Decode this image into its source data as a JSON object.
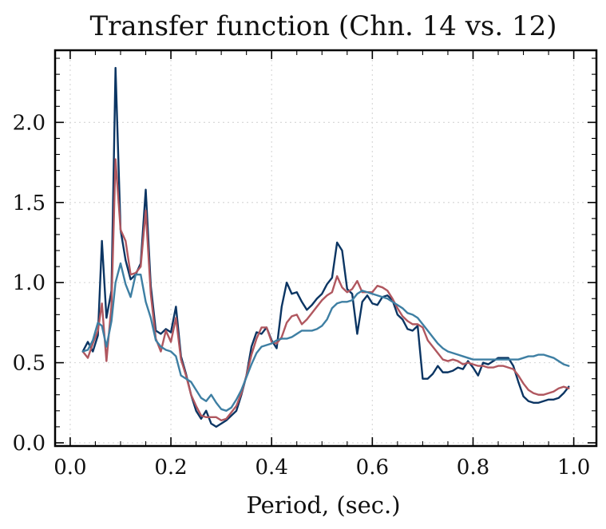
{
  "chart_data": {
    "type": "line",
    "title": "Transfer function (Chn. 14 vs. 12)",
    "xlabel": "Period, (sec.)",
    "ylabel": "",
    "xlim": [
      -0.03,
      1.045
    ],
    "ylim": [
      -0.02,
      2.45
    ],
    "xticks": [
      0.0,
      0.2,
      0.4,
      0.6,
      0.8,
      1.0
    ],
    "xtick_labels": [
      "0.0",
      "0.2",
      "0.4",
      "0.6",
      "0.8",
      "1.0"
    ],
    "yticks": [
      0.0,
      0.5,
      1.0,
      1.5,
      2.0
    ],
    "ytick_labels": [
      "0.0",
      "0.5",
      "1.0",
      "1.5",
      "2.0"
    ],
    "grid": true,
    "series": [
      {
        "color": "#0b3563",
        "points": [
          [
            0.025,
            0.57
          ],
          [
            0.035,
            0.63
          ],
          [
            0.045,
            0.57
          ],
          [
            0.055,
            0.67
          ],
          [
            0.063,
            1.26
          ],
          [
            0.072,
            0.78
          ],
          [
            0.082,
            0.95
          ],
          [
            0.09,
            2.34
          ],
          [
            0.1,
            1.33
          ],
          [
            0.11,
            1.14
          ],
          [
            0.12,
            1.02
          ],
          [
            0.13,
            1.05
          ],
          [
            0.14,
            1.12
          ],
          [
            0.15,
            1.58
          ],
          [
            0.16,
            0.98
          ],
          [
            0.17,
            0.7
          ],
          [
            0.18,
            0.68
          ],
          [
            0.19,
            0.71
          ],
          [
            0.2,
            0.69
          ],
          [
            0.21,
            0.85
          ],
          [
            0.22,
            0.54
          ],
          [
            0.23,
            0.43
          ],
          [
            0.24,
            0.3
          ],
          [
            0.25,
            0.2
          ],
          [
            0.26,
            0.15
          ],
          [
            0.27,
            0.2
          ],
          [
            0.28,
            0.12
          ],
          [
            0.29,
            0.1
          ],
          [
            0.3,
            0.12
          ],
          [
            0.31,
            0.14
          ],
          [
            0.32,
            0.17
          ],
          [
            0.33,
            0.2
          ],
          [
            0.34,
            0.3
          ],
          [
            0.35,
            0.42
          ],
          [
            0.36,
            0.6
          ],
          [
            0.37,
            0.69
          ],
          [
            0.38,
            0.68
          ],
          [
            0.39,
            0.72
          ],
          [
            0.4,
            0.64
          ],
          [
            0.41,
            0.59
          ],
          [
            0.42,
            0.85
          ],
          [
            0.43,
            1.0
          ],
          [
            0.44,
            0.93
          ],
          [
            0.45,
            0.94
          ],
          [
            0.46,
            0.88
          ],
          [
            0.47,
            0.83
          ],
          [
            0.48,
            0.86
          ],
          [
            0.49,
            0.9
          ],
          [
            0.5,
            0.93
          ],
          [
            0.51,
            0.99
          ],
          [
            0.52,
            1.03
          ],
          [
            0.53,
            1.25
          ],
          [
            0.54,
            1.2
          ],
          [
            0.55,
            0.96
          ],
          [
            0.56,
            0.93
          ],
          [
            0.57,
            0.68
          ],
          [
            0.58,
            0.88
          ],
          [
            0.59,
            0.92
          ],
          [
            0.6,
            0.87
          ],
          [
            0.61,
            0.86
          ],
          [
            0.62,
            0.91
          ],
          [
            0.63,
            0.92
          ],
          [
            0.64,
            0.89
          ],
          [
            0.65,
            0.8
          ],
          [
            0.66,
            0.77
          ],
          [
            0.67,
            0.71
          ],
          [
            0.68,
            0.7
          ],
          [
            0.69,
            0.73
          ],
          [
            0.7,
            0.4
          ],
          [
            0.71,
            0.4
          ],
          [
            0.72,
            0.43
          ],
          [
            0.73,
            0.48
          ],
          [
            0.74,
            0.44
          ],
          [
            0.75,
            0.44
          ],
          [
            0.76,
            0.45
          ],
          [
            0.77,
            0.47
          ],
          [
            0.78,
            0.46
          ],
          [
            0.79,
            0.51
          ],
          [
            0.8,
            0.47
          ],
          [
            0.81,
            0.42
          ],
          [
            0.82,
            0.5
          ],
          [
            0.83,
            0.49
          ],
          [
            0.84,
            0.51
          ],
          [
            0.85,
            0.53
          ],
          [
            0.86,
            0.53
          ],
          [
            0.87,
            0.53
          ],
          [
            0.88,
            0.48
          ],
          [
            0.89,
            0.38
          ],
          [
            0.9,
            0.29
          ],
          [
            0.91,
            0.26
          ],
          [
            0.92,
            0.25
          ],
          [
            0.93,
            0.25
          ],
          [
            0.94,
            0.26
          ],
          [
            0.95,
            0.27
          ],
          [
            0.96,
            0.27
          ],
          [
            0.97,
            0.28
          ],
          [
            0.98,
            0.31
          ],
          [
            0.99,
            0.35
          ]
        ]
      },
      {
        "color": "#b0575f",
        "points": [
          [
            0.025,
            0.57
          ],
          [
            0.035,
            0.53
          ],
          [
            0.045,
            0.62
          ],
          [
            0.055,
            0.7
          ],
          [
            0.063,
            0.87
          ],
          [
            0.072,
            0.51
          ],
          [
            0.082,
            0.86
          ],
          [
            0.09,
            1.77
          ],
          [
            0.1,
            1.33
          ],
          [
            0.11,
            1.26
          ],
          [
            0.12,
            1.05
          ],
          [
            0.13,
            1.06
          ],
          [
            0.14,
            1.1
          ],
          [
            0.15,
            1.45
          ],
          [
            0.16,
            0.93
          ],
          [
            0.17,
            0.65
          ],
          [
            0.18,
            0.57
          ],
          [
            0.19,
            0.7
          ],
          [
            0.2,
            0.63
          ],
          [
            0.21,
            0.78
          ],
          [
            0.22,
            0.52
          ],
          [
            0.23,
            0.42
          ],
          [
            0.24,
            0.3
          ],
          [
            0.25,
            0.23
          ],
          [
            0.26,
            0.17
          ],
          [
            0.27,
            0.16
          ],
          [
            0.28,
            0.16
          ],
          [
            0.29,
            0.16
          ],
          [
            0.3,
            0.14
          ],
          [
            0.31,
            0.15
          ],
          [
            0.32,
            0.19
          ],
          [
            0.33,
            0.23
          ],
          [
            0.34,
            0.31
          ],
          [
            0.35,
            0.42
          ],
          [
            0.36,
            0.55
          ],
          [
            0.37,
            0.65
          ],
          [
            0.38,
            0.72
          ],
          [
            0.39,
            0.72
          ],
          [
            0.4,
            0.63
          ],
          [
            0.41,
            0.62
          ],
          [
            0.42,
            0.66
          ],
          [
            0.43,
            0.75
          ],
          [
            0.44,
            0.79
          ],
          [
            0.45,
            0.8
          ],
          [
            0.46,
            0.74
          ],
          [
            0.47,
            0.77
          ],
          [
            0.48,
            0.81
          ],
          [
            0.49,
            0.85
          ],
          [
            0.5,
            0.89
          ],
          [
            0.51,
            0.92
          ],
          [
            0.52,
            0.94
          ],
          [
            0.53,
            1.04
          ],
          [
            0.54,
            0.97
          ],
          [
            0.55,
            0.94
          ],
          [
            0.56,
            0.96
          ],
          [
            0.57,
            1.01
          ],
          [
            0.58,
            0.94
          ],
          [
            0.59,
            0.94
          ],
          [
            0.6,
            0.94
          ],
          [
            0.61,
            0.98
          ],
          [
            0.62,
            0.97
          ],
          [
            0.63,
            0.95
          ],
          [
            0.64,
            0.9
          ],
          [
            0.65,
            0.84
          ],
          [
            0.66,
            0.79
          ],
          [
            0.67,
            0.76
          ],
          [
            0.68,
            0.74
          ],
          [
            0.69,
            0.74
          ],
          [
            0.7,
            0.72
          ],
          [
            0.71,
            0.64
          ],
          [
            0.72,
            0.6
          ],
          [
            0.73,
            0.56
          ],
          [
            0.74,
            0.52
          ],
          [
            0.75,
            0.51
          ],
          [
            0.76,
            0.52
          ],
          [
            0.77,
            0.51
          ],
          [
            0.78,
            0.49
          ],
          [
            0.79,
            0.5
          ],
          [
            0.8,
            0.49
          ],
          [
            0.81,
            0.48
          ],
          [
            0.82,
            0.48
          ],
          [
            0.83,
            0.47
          ],
          [
            0.84,
            0.47
          ],
          [
            0.85,
            0.48
          ],
          [
            0.86,
            0.48
          ],
          [
            0.87,
            0.47
          ],
          [
            0.88,
            0.46
          ],
          [
            0.89,
            0.42
          ],
          [
            0.9,
            0.37
          ],
          [
            0.91,
            0.33
          ],
          [
            0.92,
            0.31
          ],
          [
            0.93,
            0.3
          ],
          [
            0.94,
            0.3
          ],
          [
            0.95,
            0.31
          ],
          [
            0.96,
            0.32
          ],
          [
            0.97,
            0.34
          ],
          [
            0.98,
            0.35
          ],
          [
            0.99,
            0.34
          ]
        ]
      },
      {
        "color": "#3e7fa3",
        "points": [
          [
            0.025,
            0.57
          ],
          [
            0.035,
            0.58
          ],
          [
            0.045,
            0.64
          ],
          [
            0.055,
            0.75
          ],
          [
            0.063,
            0.73
          ],
          [
            0.072,
            0.6
          ],
          [
            0.082,
            0.76
          ],
          [
            0.09,
            1.0
          ],
          [
            0.1,
            1.12
          ],
          [
            0.11,
            0.99
          ],
          [
            0.12,
            0.91
          ],
          [
            0.13,
            1.05
          ],
          [
            0.14,
            1.05
          ],
          [
            0.15,
            0.88
          ],
          [
            0.16,
            0.78
          ],
          [
            0.17,
            0.64
          ],
          [
            0.18,
            0.6
          ],
          [
            0.19,
            0.58
          ],
          [
            0.2,
            0.57
          ],
          [
            0.21,
            0.54
          ],
          [
            0.22,
            0.42
          ],
          [
            0.23,
            0.4
          ],
          [
            0.24,
            0.38
          ],
          [
            0.25,
            0.33
          ],
          [
            0.26,
            0.28
          ],
          [
            0.27,
            0.26
          ],
          [
            0.28,
            0.3
          ],
          [
            0.29,
            0.25
          ],
          [
            0.3,
            0.21
          ],
          [
            0.31,
            0.2
          ],
          [
            0.32,
            0.22
          ],
          [
            0.33,
            0.27
          ],
          [
            0.34,
            0.33
          ],
          [
            0.35,
            0.41
          ],
          [
            0.36,
            0.49
          ],
          [
            0.37,
            0.56
          ],
          [
            0.38,
            0.6
          ],
          [
            0.39,
            0.61
          ],
          [
            0.4,
            0.62
          ],
          [
            0.41,
            0.64
          ],
          [
            0.42,
            0.65
          ],
          [
            0.43,
            0.65
          ],
          [
            0.44,
            0.66
          ],
          [
            0.45,
            0.68
          ],
          [
            0.46,
            0.7
          ],
          [
            0.47,
            0.7
          ],
          [
            0.48,
            0.7
          ],
          [
            0.49,
            0.71
          ],
          [
            0.5,
            0.73
          ],
          [
            0.51,
            0.77
          ],
          [
            0.52,
            0.84
          ],
          [
            0.53,
            0.87
          ],
          [
            0.54,
            0.88
          ],
          [
            0.55,
            0.88
          ],
          [
            0.56,
            0.89
          ],
          [
            0.57,
            0.93
          ],
          [
            0.58,
            0.95
          ],
          [
            0.59,
            0.94
          ],
          [
            0.6,
            0.93
          ],
          [
            0.61,
            0.92
          ],
          [
            0.62,
            0.91
          ],
          [
            0.63,
            0.9
          ],
          [
            0.64,
            0.88
          ],
          [
            0.65,
            0.86
          ],
          [
            0.66,
            0.84
          ],
          [
            0.67,
            0.81
          ],
          [
            0.68,
            0.8
          ],
          [
            0.69,
            0.78
          ],
          [
            0.7,
            0.74
          ],
          [
            0.71,
            0.7
          ],
          [
            0.72,
            0.66
          ],
          [
            0.73,
            0.62
          ],
          [
            0.74,
            0.59
          ],
          [
            0.75,
            0.57
          ],
          [
            0.76,
            0.56
          ],
          [
            0.77,
            0.55
          ],
          [
            0.78,
            0.54
          ],
          [
            0.79,
            0.53
          ],
          [
            0.8,
            0.52
          ],
          [
            0.81,
            0.52
          ],
          [
            0.82,
            0.52
          ],
          [
            0.83,
            0.52
          ],
          [
            0.84,
            0.52
          ],
          [
            0.85,
            0.52
          ],
          [
            0.86,
            0.52
          ],
          [
            0.87,
            0.52
          ],
          [
            0.88,
            0.52
          ],
          [
            0.89,
            0.52
          ],
          [
            0.9,
            0.53
          ],
          [
            0.91,
            0.54
          ],
          [
            0.92,
            0.54
          ],
          [
            0.93,
            0.55
          ],
          [
            0.94,
            0.55
          ],
          [
            0.95,
            0.54
          ],
          [
            0.96,
            0.53
          ],
          [
            0.97,
            0.51
          ],
          [
            0.98,
            0.49
          ],
          [
            0.99,
            0.48
          ]
        ]
      }
    ]
  }
}
